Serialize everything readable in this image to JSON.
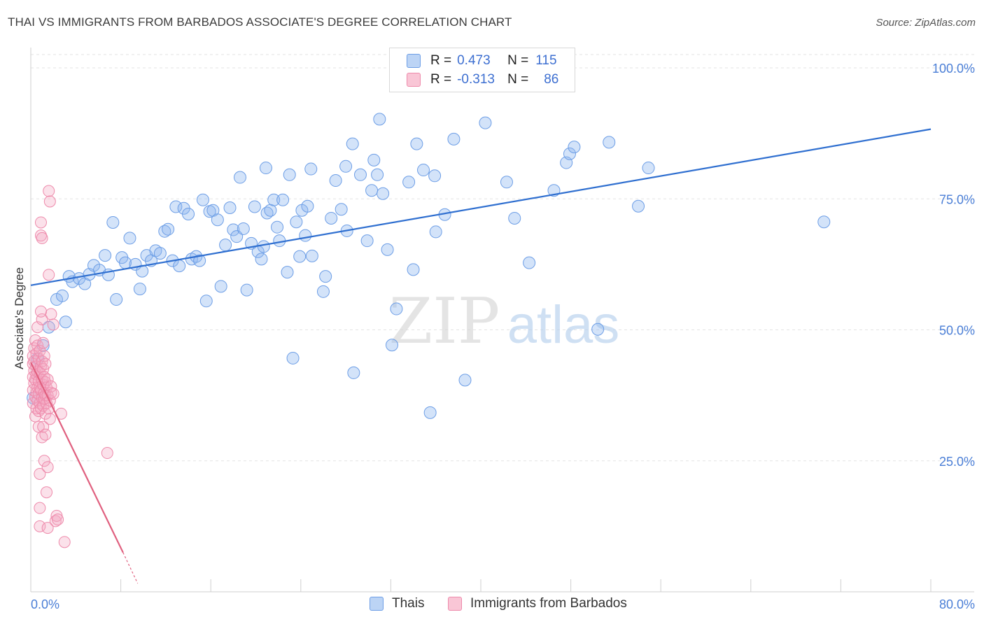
{
  "title": "THAI VS IMMIGRANTS FROM BARBADOS ASSOCIATE'S DEGREE CORRELATION CHART",
  "source": "Source: ZipAtlas.com",
  "watermark": {
    "zip": "ZIP",
    "atlas": "atlas"
  },
  "legend": {
    "r_label": "R =",
    "n_label": "N =",
    "series1": {
      "r": "0.473",
      "n": "115"
    },
    "series2": {
      "r": "-0.313",
      "n": "86"
    }
  },
  "chart_data": {
    "type": "scatter",
    "title": "THAI VS IMMIGRANTS FROM BARBADOS ASSOCIATE'S DEGREE CORRELATION CHART",
    "xlabel": "",
    "ylabel": "Associate's Degree",
    "xlim": [
      0,
      80
    ],
    "ylim": [
      0,
      100
    ],
    "x_tick_labels": [
      "0.0%",
      "80.0%"
    ],
    "y_ticks": [
      25,
      50,
      75,
      100
    ],
    "y_tick_labels": [
      "25.0%",
      "50.0%",
      "75.0%",
      "100.0%"
    ],
    "grid": true,
    "legend_position": "top-center",
    "colors": {
      "thai": "#6d9ee6",
      "thai_line": "#2f6fd0",
      "barbados": "#ee8aab",
      "barbados_line": "#e0607f"
    },
    "series": [
      {
        "name": "Thais",
        "r": 0.473,
        "n": 115,
        "trend": {
          "x": [
            0,
            80
          ],
          "y": [
            58.5,
            88.3
          ]
        },
        "points": [
          [
            0.2,
            37
          ],
          [
            0.6,
            44.5
          ],
          [
            1.1,
            47
          ],
          [
            1.6,
            50.5
          ],
          [
            2.3,
            55.8
          ],
          [
            2.8,
            56.5
          ],
          [
            3.1,
            51.5
          ],
          [
            3.4,
            60.2
          ],
          [
            3.7,
            59.2
          ],
          [
            4.3,
            59.8
          ],
          [
            4.8,
            58.8
          ],
          [
            5.2,
            60.6
          ],
          [
            5.6,
            62.3
          ],
          [
            6.1,
            61.4
          ],
          [
            6.6,
            64.2
          ],
          [
            6.9,
            60.5
          ],
          [
            7.3,
            70.5
          ],
          [
            7.6,
            55.8
          ],
          [
            8.1,
            63.8
          ],
          [
            8.4,
            62.8
          ],
          [
            8.8,
            67.5
          ],
          [
            9.3,
            62.5
          ],
          [
            9.7,
            57.8
          ],
          [
            9.9,
            61.2
          ],
          [
            10.3,
            64.2
          ],
          [
            10.7,
            63.2
          ],
          [
            11.1,
            65.1
          ],
          [
            11.5,
            64.6
          ],
          [
            11.9,
            68.8
          ],
          [
            12.2,
            69.2
          ],
          [
            12.6,
            63.2
          ],
          [
            12.9,
            73.5
          ],
          [
            13.2,
            62.2
          ],
          [
            13.6,
            73.2
          ],
          [
            14.0,
            72.1
          ],
          [
            14.3,
            63.5
          ],
          [
            14.7,
            64.0
          ],
          [
            15.0,
            63.2
          ],
          [
            15.3,
            74.8
          ],
          [
            15.6,
            55.5
          ],
          [
            15.9,
            72.6
          ],
          [
            16.2,
            72.8
          ],
          [
            16.6,
            71.0
          ],
          [
            16.9,
            58.3
          ],
          [
            17.3,
            66.2
          ],
          [
            17.7,
            73.3
          ],
          [
            18.0,
            69.1
          ],
          [
            18.3,
            67.8
          ],
          [
            18.6,
            79.1
          ],
          [
            18.9,
            69.3
          ],
          [
            19.2,
            57.6
          ],
          [
            19.6,
            66.5
          ],
          [
            19.9,
            73.5
          ],
          [
            20.2,
            64.9
          ],
          [
            20.5,
            63.5
          ],
          [
            20.7,
            65.9
          ],
          [
            21.0,
            72.3
          ],
          [
            21.3,
            72.8
          ],
          [
            21.6,
            74.8
          ],
          [
            21.9,
            69.6
          ],
          [
            22.1,
            67.0
          ],
          [
            22.4,
            74.8
          ],
          [
            23.0,
            79.6
          ],
          [
            23.6,
            70.6
          ],
          [
            23.9,
            64.0
          ],
          [
            24.1,
            72.8
          ],
          [
            24.4,
            68.0
          ],
          [
            24.6,
            73.6
          ],
          [
            25.0,
            64.1
          ],
          [
            26.0,
            57.3
          ],
          [
            26.2,
            60.2
          ],
          [
            26.7,
            71.3
          ],
          [
            27.1,
            78.5
          ],
          [
            28.0,
            81.2
          ],
          [
            28.1,
            68.9
          ],
          [
            28.6,
            85.5
          ],
          [
            29.3,
            79.6
          ],
          [
            29.9,
            67.0
          ],
          [
            30.3,
            76.6
          ],
          [
            30.8,
            79.6
          ],
          [
            31.0,
            90.2
          ],
          [
            31.3,
            76.0
          ],
          [
            31.7,
            65.3
          ],
          [
            32.5,
            54.0
          ],
          [
            33.6,
            78.2
          ],
          [
            34.0,
            61.5
          ],
          [
            34.3,
            85.5
          ],
          [
            34.9,
            80.5
          ],
          [
            35.5,
            34.2
          ],
          [
            35.9,
            79.4
          ],
          [
            36.8,
            72.0
          ],
          [
            37.6,
            86.4
          ],
          [
            38.6,
            40.4
          ],
          [
            40.4,
            89.5
          ],
          [
            42.3,
            78.2
          ],
          [
            44.3,
            62.8
          ],
          [
            46.5,
            76.6
          ],
          [
            47.6,
            81.9
          ],
          [
            47.9,
            83.6
          ],
          [
            48.3,
            84.9
          ],
          [
            50.4,
            50.1
          ],
          [
            51.4,
            85.8
          ],
          [
            54.0,
            73.6
          ],
          [
            54.9,
            80.9
          ],
          [
            70.5,
            70.6
          ],
          [
            23.3,
            44.6
          ],
          [
            28.7,
            41.8
          ],
          [
            32.1,
            47.1
          ],
          [
            30.5,
            82.4
          ],
          [
            27.6,
            73.0
          ],
          [
            22.8,
            61.0
          ],
          [
            24.9,
            80.7
          ],
          [
            20.9,
            80.9
          ],
          [
            36.0,
            68.7
          ],
          [
            43.0,
            71.3
          ]
        ]
      },
      {
        "name": "Immigrants from Barbados",
        "r": -0.313,
        "n": 86,
        "trend": {
          "x": [
            0,
            8.2
          ],
          "y": [
            43.8,
            7.5
          ]
        },
        "trend_dashed": {
          "x": [
            8.2,
            9.5
          ],
          "y": [
            7.5,
            1.6
          ]
        },
        "points": [
          [
            0.2,
            36.0
          ],
          [
            0.2,
            38.5
          ],
          [
            0.2,
            41.0
          ],
          [
            0.2,
            43.5
          ],
          [
            0.2,
            45.0
          ],
          [
            0.3,
            39.8
          ],
          [
            0.3,
            42.2
          ],
          [
            0.3,
            44.0
          ],
          [
            0.3,
            46.5
          ],
          [
            0.4,
            37.2
          ],
          [
            0.4,
            40.5
          ],
          [
            0.4,
            48.0
          ],
          [
            0.4,
            33.5
          ],
          [
            0.5,
            35.0
          ],
          [
            0.5,
            38.0
          ],
          [
            0.5,
            41.5
          ],
          [
            0.5,
            43.0
          ],
          [
            0.5,
            45.5
          ],
          [
            0.6,
            36.5
          ],
          [
            0.6,
            39.0
          ],
          [
            0.6,
            42.0
          ],
          [
            0.6,
            47.0
          ],
          [
            0.6,
            50.5
          ],
          [
            0.7,
            31.5
          ],
          [
            0.7,
            34.5
          ],
          [
            0.7,
            37.8
          ],
          [
            0.7,
            40.2
          ],
          [
            0.7,
            44.5
          ],
          [
            0.8,
            36.0
          ],
          [
            0.8,
            39.0
          ],
          [
            0.8,
            41.8
          ],
          [
            0.8,
            46.0
          ],
          [
            0.8,
            12.5
          ],
          [
            0.8,
            16.0
          ],
          [
            0.8,
            22.5
          ],
          [
            0.9,
            35.0
          ],
          [
            0.9,
            38.5
          ],
          [
            0.9,
            43.0
          ],
          [
            0.9,
            68.0
          ],
          [
            0.9,
            70.5
          ],
          [
            1.0,
            37.0
          ],
          [
            1.0,
            40.5
          ],
          [
            1.0,
            44.0
          ],
          [
            1.0,
            29.5
          ],
          [
            1.0,
            52.0
          ],
          [
            1.1,
            35.5
          ],
          [
            1.1,
            39.5
          ],
          [
            1.1,
            42.5
          ],
          [
            1.1,
            47.5
          ],
          [
            1.1,
            31.5
          ],
          [
            1.2,
            36.8
          ],
          [
            1.2,
            38.0
          ],
          [
            1.2,
            41.0
          ],
          [
            1.2,
            45.0
          ],
          [
            1.2,
            25.0
          ],
          [
            1.3,
            34.0
          ],
          [
            1.3,
            37.5
          ],
          [
            1.3,
            40.0
          ],
          [
            1.3,
            43.5
          ],
          [
            1.3,
            30.0
          ],
          [
            1.4,
            36.0
          ],
          [
            1.4,
            39.0
          ],
          [
            1.4,
            19.0
          ],
          [
            1.5,
            37.5
          ],
          [
            1.5,
            40.5
          ],
          [
            1.5,
            12.2
          ],
          [
            1.5,
            23.8
          ],
          [
            1.6,
            35.0
          ],
          [
            1.6,
            60.5
          ],
          [
            1.6,
            76.5
          ],
          [
            1.7,
            36.5
          ],
          [
            1.7,
            33.0
          ],
          [
            1.7,
            74.5
          ],
          [
            1.8,
            38.0
          ],
          [
            1.8,
            39.2
          ],
          [
            1.8,
            53.0
          ],
          [
            2.0,
            37.8
          ],
          [
            2.0,
            51.0
          ],
          [
            2.2,
            13.5
          ],
          [
            2.3,
            14.5
          ],
          [
            2.4,
            13.8
          ],
          [
            2.7,
            34.0
          ],
          [
            3.0,
            9.5
          ],
          [
            6.8,
            26.5
          ],
          [
            1.0,
            67.5
          ],
          [
            0.9,
            53.5
          ]
        ]
      }
    ]
  },
  "bottom_legend": {
    "series1": "Thais",
    "series2": "Immigrants from Barbados"
  }
}
